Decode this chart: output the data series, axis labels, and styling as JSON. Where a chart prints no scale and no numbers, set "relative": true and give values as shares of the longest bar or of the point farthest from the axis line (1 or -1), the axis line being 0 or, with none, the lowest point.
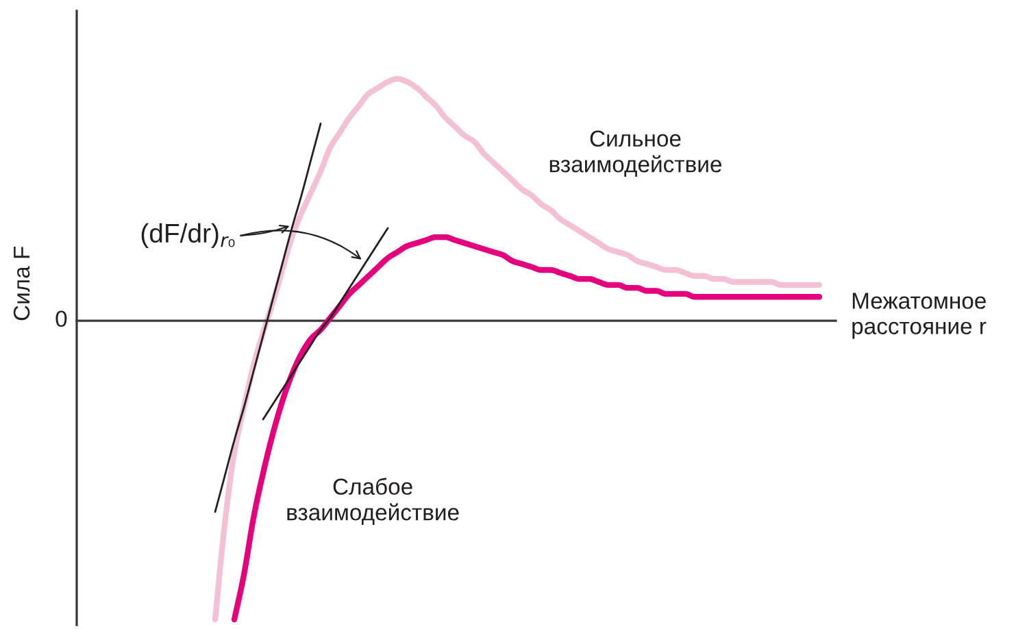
{
  "chart_data": {
    "type": "line",
    "relative": true,
    "xlabel": "Межатомное\nрасстояние r",
    "annotations": [
      "0",
      "(dF/dr)$_{r₀}$",
      "Сила F"
    ],
    "categories": [
      null,
      null,
      null,
      null,
      null,
      null,
      null,
      null,
      null,
      null,
      null,
      null,
      null,
      null,
      null,
      null,
      null,
      null,
      null,
      null,
      null,
      null,
      null,
      null,
      null,
      null,
      null,
      null,
      null,
      null,
      null,
      null,
      null,
      null,
      null,
      null,
      null,
      null,
      null,
      null,
      null,
      null,
      null,
      null,
      null,
      null,
      null,
      null,
      null,
      null,
      null,
      null,
      null,
      null,
      null,
      null,
      null,
      null,
      null,
      null,
      null,
      null,
      null,
      null
    ],
    "series": [
      {
        "name": "Сильное\nвзаимодействие",
        "color": "#f4c0d6",
        "values": [
          -1.0,
          -0.68,
          -0.44,
          -0.29,
          -0.15,
          -0.04,
          0.06,
          0.17,
          0.28,
          0.36,
          0.43,
          0.5,
          0.58,
          0.63,
          0.68,
          0.72,
          0.76,
          0.78,
          0.8,
          0.81,
          0.8,
          0.78,
          0.75,
          0.72,
          0.68,
          0.65,
          0.62,
          0.6,
          0.56,
          0.53,
          0.5,
          0.47,
          0.44,
          0.42,
          0.39,
          0.37,
          0.34,
          0.32,
          0.3,
          0.28,
          0.26,
          0.24,
          0.23,
          0.22,
          0.2,
          0.19,
          0.18,
          0.17,
          0.17,
          0.16,
          0.15,
          0.15,
          0.14,
          0.14,
          0.13,
          0.13,
          0.13,
          0.13,
          0.13,
          0.12,
          0.12,
          0.12,
          0.12,
          0.12
        ]
      },
      {
        "name": "Слабое\nвзаимодействие",
        "color": "#e5007d",
        "values": [
          null,
          null,
          -1.0,
          -0.85,
          -0.66,
          -0.51,
          -0.38,
          -0.27,
          -0.18,
          -0.11,
          -0.06,
          -0.03,
          0.01,
          0.05,
          0.09,
          0.12,
          0.15,
          0.18,
          0.21,
          0.23,
          0.25,
          0.26,
          0.27,
          0.28,
          0.28,
          0.27,
          0.26,
          0.25,
          0.24,
          0.23,
          0.22,
          0.2,
          0.19,
          0.18,
          0.17,
          0.17,
          0.16,
          0.15,
          0.14,
          0.14,
          0.13,
          0.12,
          0.12,
          0.11,
          0.11,
          0.1,
          0.1,
          0.09,
          0.09,
          0.09,
          0.08,
          0.08,
          0.08,
          0.08,
          0.08,
          0.08,
          0.08,
          0.08,
          0.08,
          0.08,
          0.08,
          0.08,
          0.08,
          0.08
        ]
      },
      {
        "color": "#231f20",
        "values": [
          -0.64,
          -0.52,
          -0.4,
          -0.29,
          -0.17,
          -0.05,
          0.07,
          0.19,
          0.31,
          0.42,
          0.54,
          0.66,
          null,
          null,
          null,
          null,
          null,
          null,
          null,
          null,
          null,
          null,
          null,
          null,
          null,
          null,
          null,
          null,
          null,
          null,
          null,
          null,
          null,
          null,
          null,
          null,
          null,
          null,
          null,
          null,
          null,
          null,
          null,
          null,
          null,
          null,
          null,
          null,
          null,
          null,
          null,
          null,
          null,
          null,
          null,
          null,
          null,
          null,
          null,
          null,
          null,
          null,
          null,
          null
        ]
      },
      {
        "color": "#231f20",
        "values": [
          null,
          null,
          null,
          null,
          null,
          -0.33,
          -0.28,
          -0.23,
          -0.18,
          -0.13,
          -0.08,
          -0.03,
          0.01,
          0.06,
          0.11,
          0.16,
          0.21,
          0.26,
          0.31,
          null,
          null,
          null,
          null,
          null,
          null,
          null,
          null,
          null,
          null,
          null,
          null,
          null,
          null,
          null,
          null,
          null,
          null,
          null,
          null,
          null,
          null,
          null,
          null,
          null,
          null,
          null,
          null,
          null,
          null,
          null,
          null,
          null,
          null,
          null,
          null,
          null,
          null,
          null,
          null,
          null,
          null,
          null,
          null,
          null
        ]
      }
    ]
  }
}
